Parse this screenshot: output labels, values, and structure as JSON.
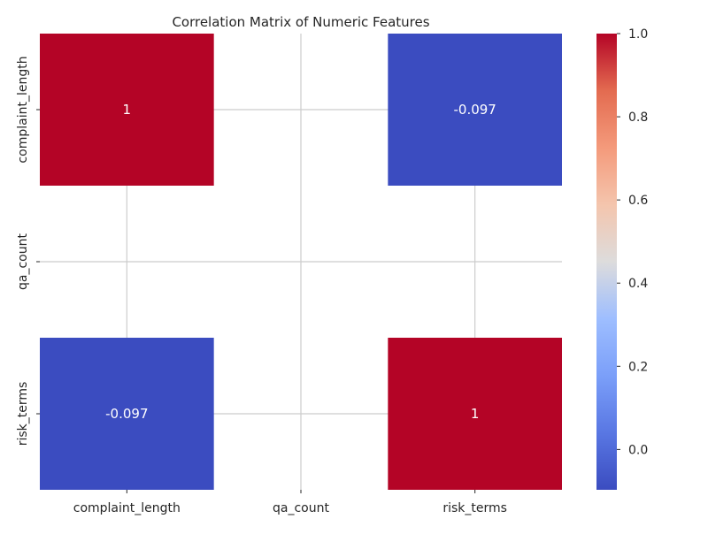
{
  "chart_data": {
    "type": "heatmap",
    "title": "Correlation Matrix of Numeric Features",
    "x_categories": [
      "complaint_length",
      "qa_count",
      "risk_terms"
    ],
    "y_categories": [
      "complaint_length",
      "qa_count",
      "risk_terms"
    ],
    "values": [
      [
        1,
        null,
        -0.097
      ],
      [
        null,
        null,
        null
      ],
      [
        -0.097,
        null,
        1
      ]
    ],
    "annotations": [
      [
        "1",
        "",
        "-0.097"
      ],
      [
        "",
        "",
        ""
      ],
      [
        "-0.097",
        "",
        "1"
      ]
    ],
    "colormap": "coolwarm",
    "vmin": -0.097,
    "vmax": 1.0,
    "colorbar_ticks": [
      "0.0",
      "0.2",
      "0.4",
      "0.6",
      "0.8",
      "1.0"
    ],
    "grid": true,
    "colors": {
      "high": "#b40426",
      "low": "#3b4cc0",
      "grid": "#cccccc"
    }
  }
}
